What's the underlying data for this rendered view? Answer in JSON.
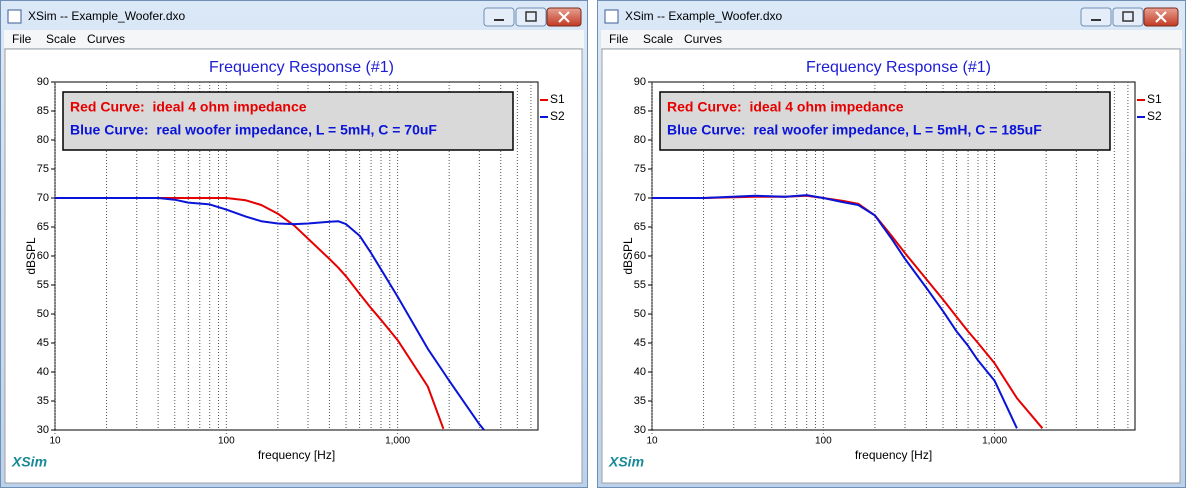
{
  "windows": [
    {
      "title": "XSim -- Example_Woofer.dxo",
      "menu": [
        "File",
        "Scale",
        "Curves"
      ],
      "logo": "XSim"
    },
    {
      "title": "XSim -- Example_Woofer.dxo",
      "menu": [
        "File",
        "Scale",
        "Curves"
      ],
      "logo": "XSim"
    }
  ],
  "chart_data": [
    {
      "type": "line",
      "title": "Frequency Response (#1)",
      "x_label": "frequency [Hz]",
      "y_label": "dBSPL",
      "x_scale": "log",
      "xlim": [
        10,
        6600
      ],
      "ylim": [
        30,
        90
      ],
      "xticks": [
        10,
        100,
        {
          "value": 1000,
          "label": "1,000"
        }
      ],
      "x_minor_ticks": [
        20,
        30,
        40,
        50,
        60,
        70,
        80,
        90,
        200,
        300,
        400,
        500,
        600,
        700,
        800,
        900,
        2000,
        3000,
        4000,
        5000,
        6000
      ],
      "yticks": [
        30,
        35,
        40,
        45,
        50,
        55,
        60,
        65,
        70,
        75,
        80,
        85,
        90
      ],
      "grid": true,
      "legend": "right",
      "annotations": [
        {
          "text": "Red Curve:  ideal 4 ohm impedance",
          "color": "#e60000"
        },
        {
          "text": "Blue Curve:  real woofer impedance, L = 5mH, C = 70uF",
          "color": "#0a14d8"
        }
      ],
      "x": [
        10,
        20,
        40,
        50,
        60,
        80,
        100,
        130,
        160,
        200,
        250,
        300,
        400,
        450,
        500,
        600,
        700,
        800,
        1000,
        1500,
        1850,
        2000,
        3000,
        3200
      ],
      "series": [
        {
          "name": "S1",
          "color": "#e60000",
          "values": [
            70,
            70,
            70,
            70,
            70,
            70,
            70,
            69.6,
            68.8,
            67.3,
            65.2,
            63,
            59.5,
            58,
            56.5,
            53.5,
            51,
            49,
            45.5,
            37.5,
            30.2,
            null,
            null,
            null
          ]
        },
        {
          "name": "S2",
          "color": "#0a14d8",
          "values": [
            70,
            70,
            70,
            69.7,
            69.2,
            68.9,
            68,
            66.8,
            66,
            65.6,
            65.5,
            65.6,
            65.9,
            66,
            65.5,
            63.5,
            60.5,
            57.7,
            53,
            44,
            40,
            38.5,
            31,
            30
          ]
        }
      ]
    },
    {
      "type": "line",
      "title": "Frequency Response (#1)",
      "x_label": "frequency [Hz]",
      "y_label": "dBSPL",
      "x_scale": "log",
      "xlim": [
        10,
        6600
      ],
      "ylim": [
        30,
        90
      ],
      "xticks": [
        10,
        100,
        {
          "value": 1000,
          "label": "1,000"
        }
      ],
      "x_minor_ticks": [
        20,
        30,
        40,
        50,
        60,
        70,
        80,
        90,
        200,
        300,
        400,
        500,
        600,
        700,
        800,
        900,
        2000,
        3000,
        4000,
        5000,
        6000
      ],
      "yticks": [
        30,
        35,
        40,
        45,
        50,
        55,
        60,
        65,
        70,
        75,
        80,
        85,
        90
      ],
      "grid": true,
      "legend": "right",
      "annotations": [
        {
          "text": "Red Curve:  ideal 4 ohm impedance",
          "color": "#e60000"
        },
        {
          "text": "Blue Curve:  real woofer impedance, L = 5mH, C = 185uF",
          "color": "#0a14d8"
        }
      ],
      "x": [
        10,
        20,
        40,
        60,
        80,
        100,
        130,
        160,
        200,
        250,
        300,
        400,
        500,
        600,
        700,
        800,
        1000,
        1350,
        1900
      ],
      "series": [
        {
          "name": "S1",
          "color": "#e60000",
          "values": [
            70,
            70,
            70.2,
            70.2,
            70.4,
            70,
            69.5,
            69,
            67,
            63.5,
            60.5,
            56,
            52.5,
            49.5,
            47,
            45,
            41.5,
            35.5,
            30.3
          ]
        },
        {
          "name": "S2",
          "color": "#0a14d8",
          "values": [
            70,
            70,
            70.4,
            70.2,
            70.5,
            70,
            69.3,
            68.8,
            67,
            63,
            59.5,
            54.5,
            50.5,
            47,
            44.5,
            42,
            38.5,
            30.3,
            null
          ]
        }
      ]
    }
  ]
}
